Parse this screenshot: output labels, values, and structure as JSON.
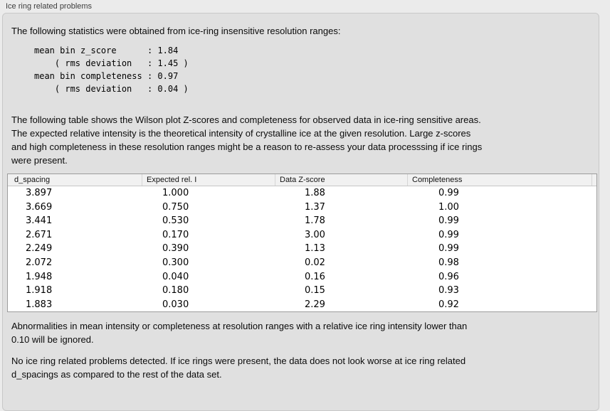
{
  "panel": {
    "title": "Ice ring related problems"
  },
  "intro": "The following statistics were obtained from ice-ring insensitive resolution ranges:",
  "stats_block": "mean bin z_score      : 1.84\n    ( rms deviation   : 1.45 )\nmean bin completeness : 0.97\n    ( rms deviation   : 0.04 )",
  "table_caption": "The following table shows the Wilson plot Z-scores and completeness for observed data in ice-ring sensitive areas.\nThe expected relative intensity is the theoretical intensity of crystalline ice at the given resolution. Large z-scores\nand high completeness in these resolution ranges might be a reason to re-assess your data processsing if ice rings\nwere present.",
  "table": {
    "headers": [
      "d_spacing",
      "Expected rel. I",
      "Data Z-score",
      "Completeness"
    ],
    "rows": [
      [
        "3.897",
        "1.000",
        "1.88",
        "0.99"
      ],
      [
        "3.669",
        "0.750",
        "1.37",
        "1.00"
      ],
      [
        "3.441",
        "0.530",
        "1.78",
        "0.99"
      ],
      [
        "2.671",
        "0.170",
        "3.00",
        "0.99"
      ],
      [
        "2.249",
        "0.390",
        "1.13",
        "0.99"
      ],
      [
        "2.072",
        "0.300",
        "0.02",
        "0.98"
      ],
      [
        "1.948",
        "0.040",
        "0.16",
        "0.96"
      ],
      [
        "1.918",
        "0.180",
        "0.15",
        "0.93"
      ],
      [
        "1.883",
        "0.030",
        "2.29",
        "0.92"
      ]
    ]
  },
  "notes": [
    "Abnormalities in mean intensity or completeness at resolution ranges with a relative ice ring intensity lower than\n0.10 will be ignored.",
    "No ice ring related problems detected. If ice rings were present, the data does not look worse at ice ring related\nd_spacings as compared to the rest of the data set."
  ]
}
